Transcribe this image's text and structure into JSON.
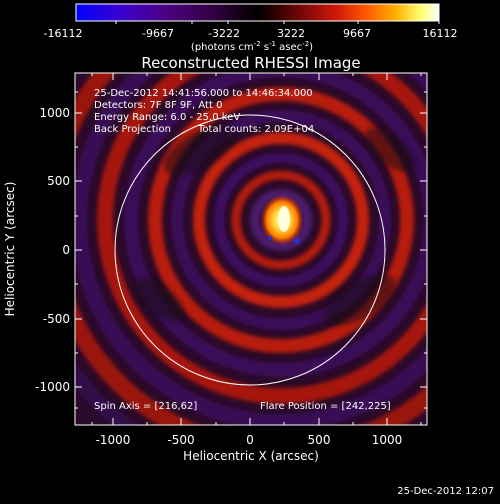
{
  "colorbar": {
    "tick_labels": [
      "-16112",
      "-9667",
      "-3222",
      "3222",
      "9667",
      "16112"
    ],
    "unit_prefix": "(photons cm",
    "unit_exp1": "-2",
    "unit_mid": " s",
    "unit_exp2": "-1",
    "unit_mid2": " asec",
    "unit_exp3": "-2",
    "unit_suffix": ")",
    "stops": [
      "#0000ff",
      "#3a00d0",
      "#4b0080",
      "#300040",
      "#1a001a",
      "#000000",
      "#3a0000",
      "#8a0a0a",
      "#d21a0a",
      "#ff5a00",
      "#ffb000",
      "#ffff70",
      "#ffffff"
    ]
  },
  "title": "Reconstructed RHESSI Image",
  "info": {
    "line1": "25-Dec-2012 14:41:56.000 to 14:46:34.000",
    "line2": "Detectors: 7F 8F 9F, Att 0",
    "line3": "Energy Range: 6.0 - 25.0 keV",
    "line4a": "Back Projection",
    "line4b": "Total counts: 2.09E+04",
    "spin_axis": "Spin Axis = [216,62]",
    "flare_position": "Flare Position = [242,225]"
  },
  "axes": {
    "xlabel": "Heliocentric X (arcsec)",
    "ylabel": "Heliocentric Y (arcsec)",
    "xticks": [
      "-1000",
      "-500",
      "0",
      "500",
      "1000"
    ],
    "yticks": [
      "1000",
      "500",
      "0",
      "-500",
      "-1000"
    ],
    "xlim": [
      -1280,
      1280
    ],
    "ylim": [
      -1280,
      1280
    ]
  },
  "footer": {
    "timestamp": "25-Dec-2012 12:07"
  }
}
